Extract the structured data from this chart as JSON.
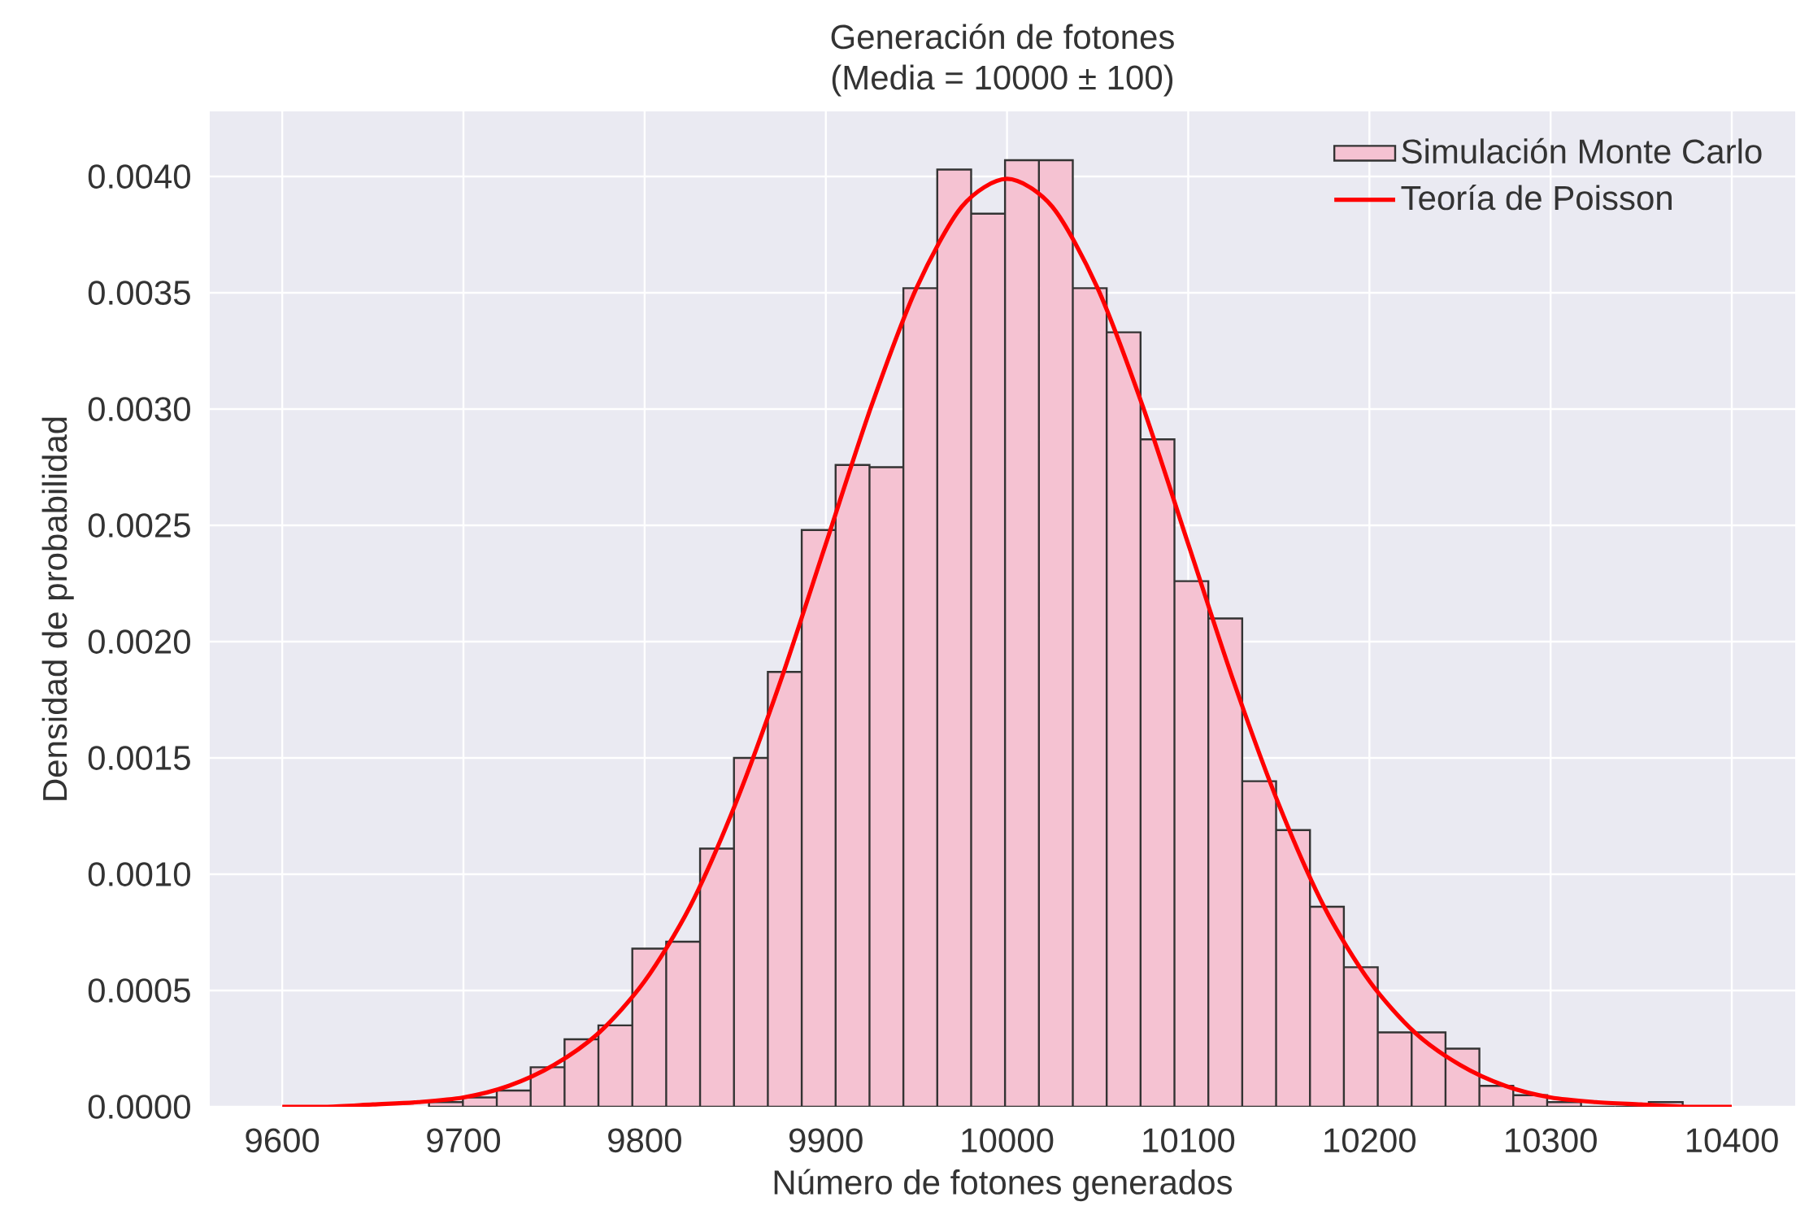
{
  "chart_data": {
    "type": "histogram",
    "title": "Generación de fotones",
    "subtitle": "(Media = 10000 ± 100)",
    "xlabel": "Número de fotones generados",
    "ylabel": "Densidad de probabilidad",
    "series": [
      {
        "name": "Simulación Monte Carlo",
        "color": "#f5c2d2",
        "bins": [
          9681.0,
          9699.7,
          9718.4,
          9737.1,
          9755.8,
          9774.5,
          9793.2,
          9811.9,
          9830.6,
          9849.3,
          9868.0,
          9886.7,
          9905.4,
          9924.1,
          9942.8,
          9961.5,
          9980.2,
          9998.9,
          10017.6,
          10036.3,
          10055.0,
          10073.7,
          10092.4,
          10111.1,
          10129.8,
          10148.5,
          10167.2,
          10185.9,
          10204.6,
          10223.3,
          10242.0,
          10260.7,
          10279.4,
          10298.1,
          10316.8,
          10335.5,
          10354.2,
          10372.9
        ],
        "values": [
          2e-05,
          4e-05,
          7e-05,
          0.00017,
          0.00029,
          0.00035,
          0.00068,
          0.00071,
          0.00111,
          0.0015,
          0.00187,
          0.00248,
          0.00276,
          0.00275,
          0.00352,
          0.00403,
          0.00384,
          0.00407,
          0.00407,
          0.00352,
          0.00333,
          0.00287,
          0.00226,
          0.0021,
          0.0014,
          0.00119,
          0.00086,
          0.0006,
          0.00032,
          0.00032,
          0.00025,
          9e-05,
          5e-05,
          2e-05,
          0,
          0,
          2e-05
        ]
      },
      {
        "name": "Teoría de Poisson",
        "type": "line",
        "color": "#ff0000",
        "x": [
          9600,
          9625,
          9650,
          9675,
          9700,
          9725,
          9750,
          9775,
          9800,
          9825,
          9850,
          9875,
          9900,
          9925,
          9950,
          9975,
          10000,
          10025,
          10050,
          10075,
          10100,
          10125,
          10150,
          10175,
          10200,
          10225,
          10250,
          10275,
          10300,
          10325,
          10350,
          10375,
          10400
        ],
        "values": [
          0.0,
          0.0,
          1e-05,
          2e-05,
          4e-05,
          9e-05,
          0.00018,
          0.00032,
          0.00054,
          0.00086,
          0.0013,
          0.00183,
          0.00242,
          0.00301,
          0.00352,
          0.00387,
          0.00399,
          0.00387,
          0.00352,
          0.00301,
          0.00242,
          0.00183,
          0.0013,
          0.00086,
          0.00054,
          0.00032,
          0.00018,
          9e-05,
          4e-05,
          2e-05,
          1e-05,
          0.0,
          0.0
        ]
      }
    ],
    "xlim": [
      9560,
      10435
    ],
    "ylim": [
      0,
      0.00428
    ],
    "xticks": [
      9600,
      9700,
      9800,
      9900,
      10000,
      10100,
      10200,
      10300,
      10400
    ],
    "yticks": [
      {
        "value": 0,
        "label": "0.0000"
      },
      {
        "value": 0.0005,
        "label": "0.0005"
      },
      {
        "value": 0.001,
        "label": "0.0010"
      },
      {
        "value": 0.0015,
        "label": "0.0015"
      },
      {
        "value": 0.002,
        "label": "0.0020"
      },
      {
        "value": 0.0025,
        "label": "0.0025"
      },
      {
        "value": 0.003,
        "label": "0.0030"
      },
      {
        "value": 0.0035,
        "label": "0.0035"
      },
      {
        "value": 0.004,
        "label": "0.0040"
      }
    ],
    "grid": true,
    "legend": "top right"
  }
}
